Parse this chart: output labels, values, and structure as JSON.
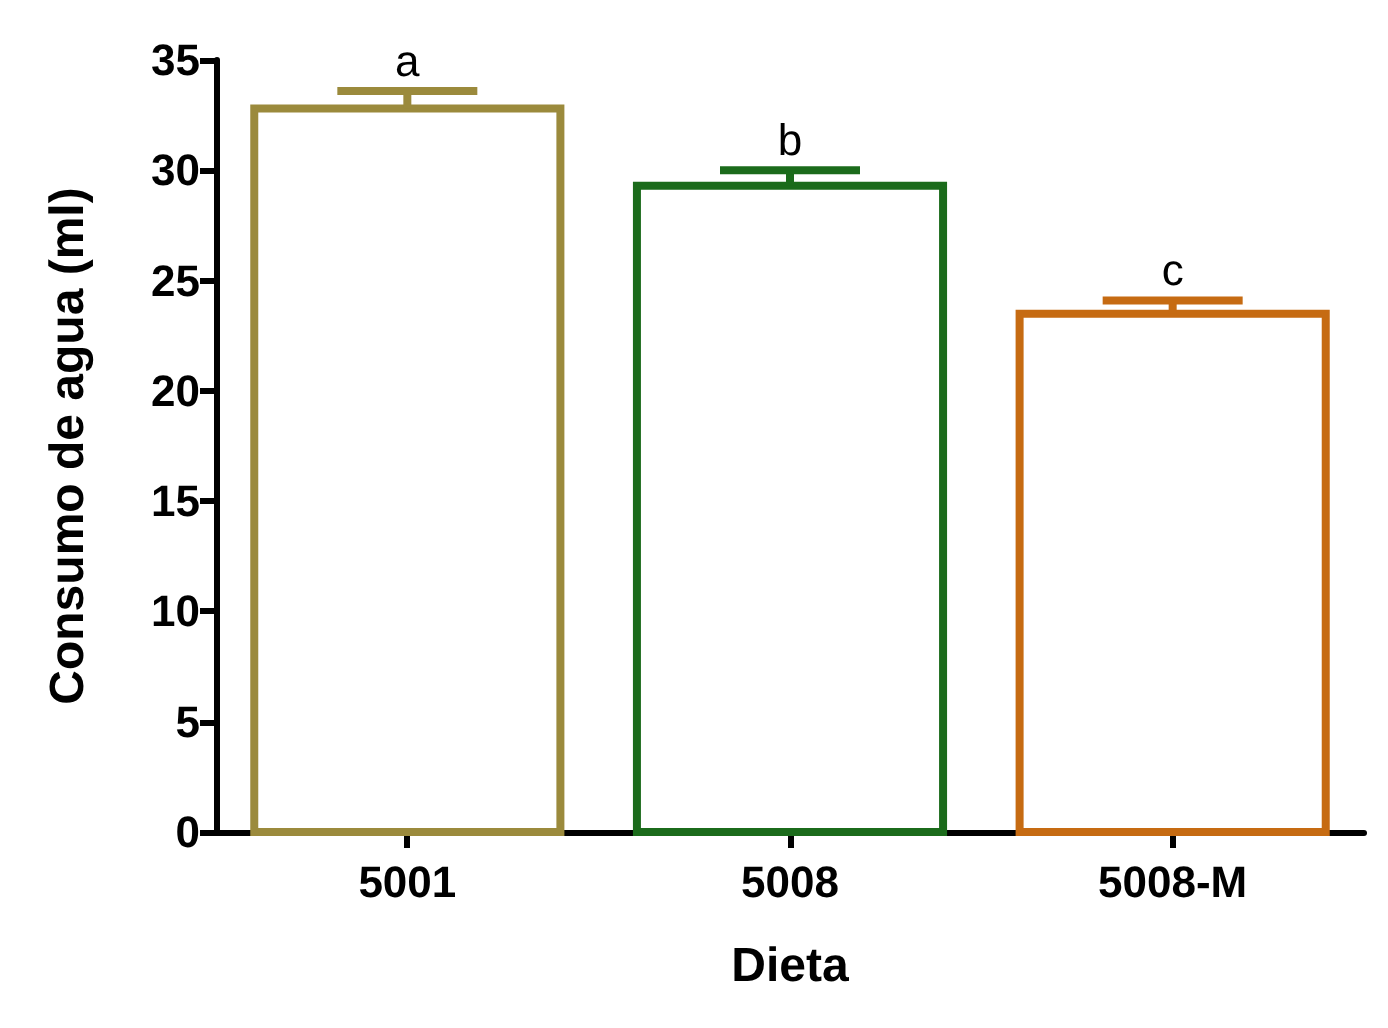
{
  "chart_data": {
    "type": "bar",
    "xlabel": "Dieta",
    "ylabel": "Consumo de agua (ml)",
    "categories": [
      "5001",
      "5008",
      "5008-M"
    ],
    "values": [
      32.8,
      29.3,
      23.5
    ],
    "errors": [
      [
        32.8,
        33.6
      ],
      [
        29.3,
        30.0
      ],
      [
        23.5,
        24.1
      ]
    ],
    "colors": [
      "#9b8a3c",
      "#1b6b1b",
      "#c66b12"
    ],
    "ylim": [
      0,
      35
    ],
    "yticks": [
      0,
      5,
      10,
      15,
      20,
      25,
      30,
      35
    ],
    "grid": false,
    "annotations": [
      {
        "text": "a",
        "x": "5001",
        "y": 33.6
      },
      {
        "text": "b",
        "x": "5008",
        "y": 30.0
      },
      {
        "text": "c",
        "x": "5008-M",
        "y": 24.1
      }
    ]
  }
}
